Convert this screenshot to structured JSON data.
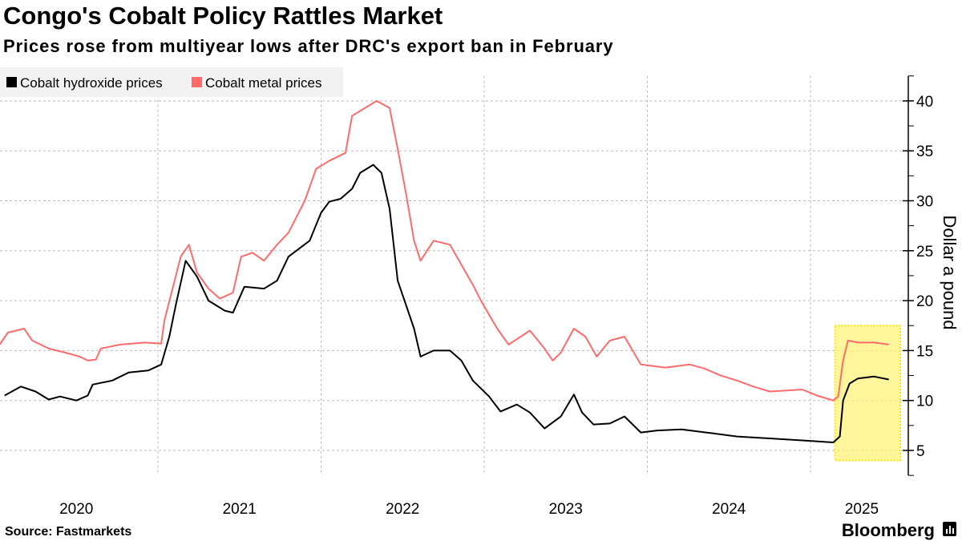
{
  "chart_data": {
    "type": "line",
    "title": "Congo's Cobalt Policy Rattles Market",
    "subtitle": "Prices rose from multiyear lows after DRC's export ban in February",
    "ylabel": "Dollar a pound",
    "xlabel": "",
    "ylim": [
      2.5,
      42.5
    ],
    "yticks": [
      5,
      10,
      15,
      20,
      25,
      30,
      35,
      40
    ],
    "xticks": [
      "2020",
      "2021",
      "2022",
      "2023",
      "2024",
      "2025"
    ],
    "grid": true,
    "legend_placement": "top-left",
    "highlight": {
      "x_from": 2025.15,
      "x_to": 2025.55,
      "y_from": 4,
      "y_to": 17.5,
      "color": "#fff27a"
    },
    "source": "Source: Fastmarkets",
    "brand": "Bloomberg",
    "series": [
      {
        "name": "Cobalt hydroxide prices",
        "color": "#000000",
        "points": [
          [
            2020.06,
            10.5
          ],
          [
            2020.16,
            11.4
          ],
          [
            2020.25,
            10.9
          ],
          [
            2020.33,
            10.1
          ],
          [
            2020.4,
            10.4
          ],
          [
            2020.5,
            10.0
          ],
          [
            2020.57,
            10.5
          ],
          [
            2020.6,
            11.6
          ],
          [
            2020.72,
            12.0
          ],
          [
            2020.82,
            12.8
          ],
          [
            2020.94,
            13.0
          ],
          [
            2021.02,
            13.6
          ],
          [
            2021.07,
            16.4
          ],
          [
            2021.11,
            19.6
          ],
          [
            2021.17,
            24.0
          ],
          [
            2021.24,
            22.4
          ],
          [
            2021.31,
            20.0
          ],
          [
            2021.41,
            19.0
          ],
          [
            2021.46,
            18.8
          ],
          [
            2021.53,
            21.4
          ],
          [
            2021.65,
            21.2
          ],
          [
            2021.73,
            22.0
          ],
          [
            2021.8,
            24.4
          ],
          [
            2021.93,
            26.0
          ],
          [
            2022.0,
            28.8
          ],
          [
            2022.05,
            29.9
          ],
          [
            2022.12,
            30.2
          ],
          [
            2022.19,
            31.2
          ],
          [
            2022.24,
            32.8
          ],
          [
            2022.32,
            33.6
          ],
          [
            2022.37,
            32.8
          ],
          [
            2022.42,
            29.2
          ],
          [
            2022.47,
            22.0
          ],
          [
            2022.52,
            19.6
          ],
          [
            2022.57,
            17.2
          ],
          [
            2022.61,
            14.4
          ],
          [
            2022.69,
            15.0
          ],
          [
            2022.79,
            15.0
          ],
          [
            2022.86,
            14.0
          ],
          [
            2022.93,
            12.0
          ],
          [
            2023.03,
            10.4
          ],
          [
            2023.1,
            8.9
          ],
          [
            2023.2,
            9.6
          ],
          [
            2023.28,
            8.8
          ],
          [
            2023.37,
            7.2
          ],
          [
            2023.47,
            8.4
          ],
          [
            2023.55,
            10.6
          ],
          [
            2023.6,
            8.8
          ],
          [
            2023.67,
            7.6
          ],
          [
            2023.77,
            7.7
          ],
          [
            2023.86,
            8.4
          ],
          [
            2023.96,
            6.8
          ],
          [
            2024.06,
            7.0
          ],
          [
            2024.21,
            7.1
          ],
          [
            2024.36,
            6.8
          ],
          [
            2024.55,
            6.4
          ],
          [
            2024.75,
            6.2
          ],
          [
            2024.95,
            6.0
          ],
          [
            2025.14,
            5.8
          ],
          [
            2025.18,
            6.4
          ],
          [
            2025.2,
            10.0
          ],
          [
            2025.24,
            11.7
          ],
          [
            2025.29,
            12.2
          ],
          [
            2025.39,
            12.4
          ],
          [
            2025.48,
            12.1
          ]
        ]
      },
      {
        "name": "Cobalt metal prices",
        "color": "#ff6b6b",
        "points": [
          [
            2020.03,
            15.6
          ],
          [
            2020.08,
            16.8
          ],
          [
            2020.18,
            17.2
          ],
          [
            2020.23,
            16.0
          ],
          [
            2020.33,
            15.2
          ],
          [
            2020.43,
            14.8
          ],
          [
            2020.52,
            14.4
          ],
          [
            2020.57,
            14.0
          ],
          [
            2020.62,
            14.1
          ],
          [
            2020.65,
            15.2
          ],
          [
            2020.77,
            15.6
          ],
          [
            2020.92,
            15.8
          ],
          [
            2021.02,
            15.7
          ],
          [
            2021.04,
            18.0
          ],
          [
            2021.09,
            21.2
          ],
          [
            2021.14,
            24.4
          ],
          [
            2021.19,
            25.6
          ],
          [
            2021.24,
            22.8
          ],
          [
            2021.31,
            21.2
          ],
          [
            2021.38,
            20.2
          ],
          [
            2021.46,
            20.8
          ],
          [
            2021.51,
            24.4
          ],
          [
            2021.58,
            24.8
          ],
          [
            2021.65,
            24.0
          ],
          [
            2021.73,
            25.6
          ],
          [
            2021.8,
            26.8
          ],
          [
            2021.9,
            30.0
          ],
          [
            2021.97,
            33.2
          ],
          [
            2022.05,
            34.0
          ],
          [
            2022.15,
            34.8
          ],
          [
            2022.19,
            38.5
          ],
          [
            2022.27,
            39.3
          ],
          [
            2022.34,
            40.0
          ],
          [
            2022.42,
            39.3
          ],
          [
            2022.47,
            35.2
          ],
          [
            2022.52,
            30.8
          ],
          [
            2022.57,
            26.0
          ],
          [
            2022.61,
            24.0
          ],
          [
            2022.69,
            26.0
          ],
          [
            2022.79,
            25.6
          ],
          [
            2022.86,
            23.6
          ],
          [
            2022.93,
            21.6
          ],
          [
            2022.98,
            20.0
          ],
          [
            2023.08,
            17.2
          ],
          [
            2023.15,
            15.6
          ],
          [
            2023.28,
            17.0
          ],
          [
            2023.37,
            15.2
          ],
          [
            2023.42,
            14.0
          ],
          [
            2023.47,
            14.8
          ],
          [
            2023.55,
            17.2
          ],
          [
            2023.62,
            16.4
          ],
          [
            2023.69,
            14.4
          ],
          [
            2023.77,
            16.0
          ],
          [
            2023.86,
            16.4
          ],
          [
            2023.96,
            13.6
          ],
          [
            2024.11,
            13.3
          ],
          [
            2024.26,
            13.6
          ],
          [
            2024.35,
            13.2
          ],
          [
            2024.45,
            12.5
          ],
          [
            2024.55,
            12.0
          ],
          [
            2024.65,
            11.4
          ],
          [
            2024.75,
            10.9
          ],
          [
            2024.85,
            11.0
          ],
          [
            2024.95,
            11.1
          ],
          [
            2025.04,
            10.5
          ],
          [
            2025.14,
            10.0
          ],
          [
            2025.17,
            10.4
          ],
          [
            2025.2,
            14.0
          ],
          [
            2025.23,
            16.0
          ],
          [
            2025.29,
            15.8
          ],
          [
            2025.39,
            15.8
          ],
          [
            2025.48,
            15.6
          ]
        ]
      }
    ]
  }
}
